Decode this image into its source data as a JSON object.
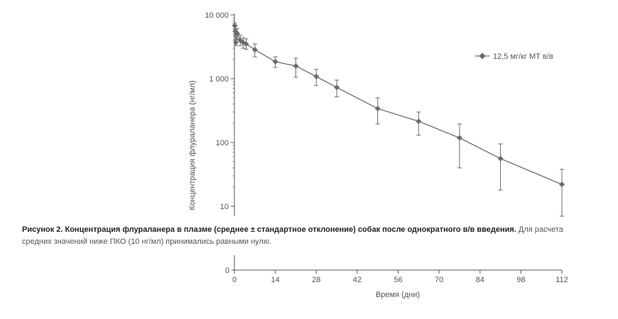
{
  "chart_data": {
    "type": "line",
    "scale_y": "log",
    "ylabel": "Концентрация флураланера (нг/мл)",
    "xlabel": "Время (дни)",
    "y_ticks": [
      {
        "value": 10000,
        "label": "10 000"
      },
      {
        "value": 1000,
        "label": "1 000"
      },
      {
        "value": 100,
        "label": "100"
      },
      {
        "value": 10,
        "label": "10"
      }
    ],
    "x_ticks": [
      {
        "value": 0,
        "label": "0"
      },
      {
        "value": 14,
        "label": "14"
      },
      {
        "value": 28,
        "label": "28"
      },
      {
        "value": 42,
        "label": "42"
      },
      {
        "value": 56,
        "label": "56"
      },
      {
        "value": 70,
        "label": "70"
      },
      {
        "value": 84,
        "label": "84"
      },
      {
        "value": 98,
        "label": "98"
      },
      {
        "value": 112,
        "label": "112"
      }
    ],
    "zero_axis_tick": "0",
    "xlim": [
      0,
      112
    ],
    "ylim": [
      10,
      10000
    ],
    "series": [
      {
        "name": "12,5 мг/кг МТ в/в",
        "color": "#6b6b6b",
        "points": [
          {
            "x": 0.1,
            "y": 6800,
            "lo": 6000,
            "hi": 7500
          },
          {
            "x": 0.3,
            "y": 5500,
            "lo": 4600,
            "hi": 6500
          },
          {
            "x": 0.5,
            "y": 3700,
            "lo": 3300,
            "hi": 4100
          },
          {
            "x": 1,
            "y": 5100,
            "lo": 4200,
            "hi": 6100
          },
          {
            "x": 2,
            "y": 4000,
            "lo": 3300,
            "hi": 4800
          },
          {
            "x": 3,
            "y": 3700,
            "lo": 3000,
            "hi": 4400
          },
          {
            "x": 4,
            "y": 3500,
            "lo": 2900,
            "hi": 4200
          },
          {
            "x": 7,
            "y": 2850,
            "lo": 2200,
            "hi": 3500
          },
          {
            "x": 14,
            "y": 1850,
            "lo": 1500,
            "hi": 2200
          },
          {
            "x": 21,
            "y": 1580,
            "lo": 1050,
            "hi": 2100
          },
          {
            "x": 28,
            "y": 1080,
            "lo": 780,
            "hi": 1400
          },
          {
            "x": 35,
            "y": 730,
            "lo": 520,
            "hi": 950
          },
          {
            "x": 49,
            "y": 340,
            "lo": 195,
            "hi": 500
          },
          {
            "x": 63,
            "y": 215,
            "lo": 130,
            "hi": 300
          },
          {
            "x": 77,
            "y": 118,
            "lo": 40,
            "hi": 195
          },
          {
            "x": 91,
            "y": 56,
            "lo": 18,
            "hi": 95
          },
          {
            "x": 112,
            "y": 22,
            "lo": 7,
            "hi": 38
          }
        ]
      }
    ]
  },
  "caption": {
    "bold": "Рисунок 2. Концентрация флураланера в плазме (среднее ± стандартное отклонение) собак после однократного в/в введения.",
    "normal": " Для расчета средних значений ниже ПКО (10 нг/мл) принимались равными нулю."
  }
}
